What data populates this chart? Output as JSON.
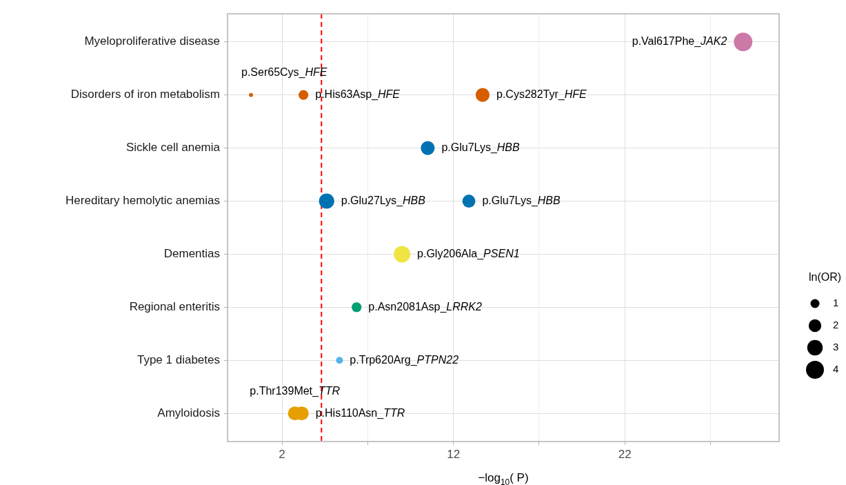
{
  "chart_data": {
    "type": "bubble",
    "orientation": "horizontal",
    "xlabel": "−log$_{10}$( P)",
    "legend_title": "ln(OR)",
    "grid": true,
    "categories": [
      "Myeloproliferative disease",
      "Disorders of iron metabolism",
      "Sickle cell anemia",
      "Hereditary hemolytic anemias",
      "Dementias",
      "Regional enteritis",
      "Type 1 diabetes",
      "Amyloidosis"
    ],
    "xlim": [
      -1.18,
      31
    ],
    "xticks": [
      2,
      {
        "value": 7,
        "label": null
      },
      12,
      {
        "value": 17,
        "label": null
      },
      22,
      {
        "value": 27,
        "label": null
      }
    ],
    "size_legend": [
      1,
      2,
      3,
      4
    ],
    "series": [
      {
        "values": [
          28.9,
          0.19,
          10.5,
          4.6,
          9.0,
          6.35,
          5.35,
          2.75
        ],
        "sizes": [
          4.3,
          0.2,
          2.4,
          2.9,
          3.4,
          1.2,
          0.6,
          2.4
        ],
        "colors": [
          "#cc79a7",
          "#d55e00",
          "#0072b2",
          "#0072b2",
          "#f0e442",
          "#009e73",
          "#56b4e9",
          "#e69f00"
        ]
      },
      {
        "values": [
          null,
          3.25,
          null,
          12.9,
          null,
          null,
          null,
          3.15
        ],
        "sizes": [
          null,
          1.2,
          null,
          2.1,
          null,
          null,
          null,
          2.4
        ],
        "colors": [
          null,
          "#d55e00",
          null,
          "#0072b2",
          null,
          null,
          null,
          "#e69f00"
        ]
      },
      {
        "values": [
          null,
          13.7,
          null,
          null,
          null,
          null,
          null,
          null
        ],
        "sizes": [
          null,
          2.4,
          null,
          null,
          null,
          null,
          null,
          null
        ],
        "colors": [
          null,
          "#d55e00",
          null,
          null,
          null,
          null,
          null,
          null
        ]
      }
    ],
    "ref_lines": [
      {
        "axis": "x",
        "value": 4.3,
        "color": "#ff0000",
        "line_style": "dashed"
      }
    ],
    "annotations": [
      {
        "text": "p.Val617Phe_JAK2",
        "x": 28.9,
        "y": "Myeloproliferative disease"
      },
      {
        "text": "p.Ser65Cys_HFE",
        "x": 0.19,
        "y": "Disorders of iron metabolism"
      },
      {
        "text": "p.His63Asp_HFE",
        "x": 3.25,
        "y": "Disorders of iron metabolism"
      },
      {
        "text": "p.Cys282Tyr_HFE",
        "x": 13.7,
        "y": "Disorders of iron metabolism"
      },
      {
        "text": "p.Glu7Lys_HBB",
        "x": 10.5,
        "y": "Sickle cell anemia"
      },
      {
        "text": "p.Glu27Lys_HBB",
        "x": 4.6,
        "y": "Hereditary hemolytic anemias"
      },
      {
        "text": "p.Glu7Lys_HBB",
        "x": 12.9,
        "y": "Hereditary hemolytic anemias"
      },
      {
        "text": "p.Gly206Ala_PSEN1",
        "x": 9.0,
        "y": "Dementias"
      },
      {
        "text": "p.Asn2081Asp_LRRK2",
        "x": 6.35,
        "y": "Regional enteritis"
      },
      {
        "text": "p.Trp620Arg_PTPN22",
        "x": 5.35,
        "y": "Type 1 diabetes"
      },
      {
        "text": "p.Thr139Met_TTR",
        "x": 2.75,
        "y": "Amyloidosis"
      },
      {
        "text": "p.His110Asn_TTR",
        "x": 3.15,
        "y": "Amyloidosis"
      }
    ]
  }
}
